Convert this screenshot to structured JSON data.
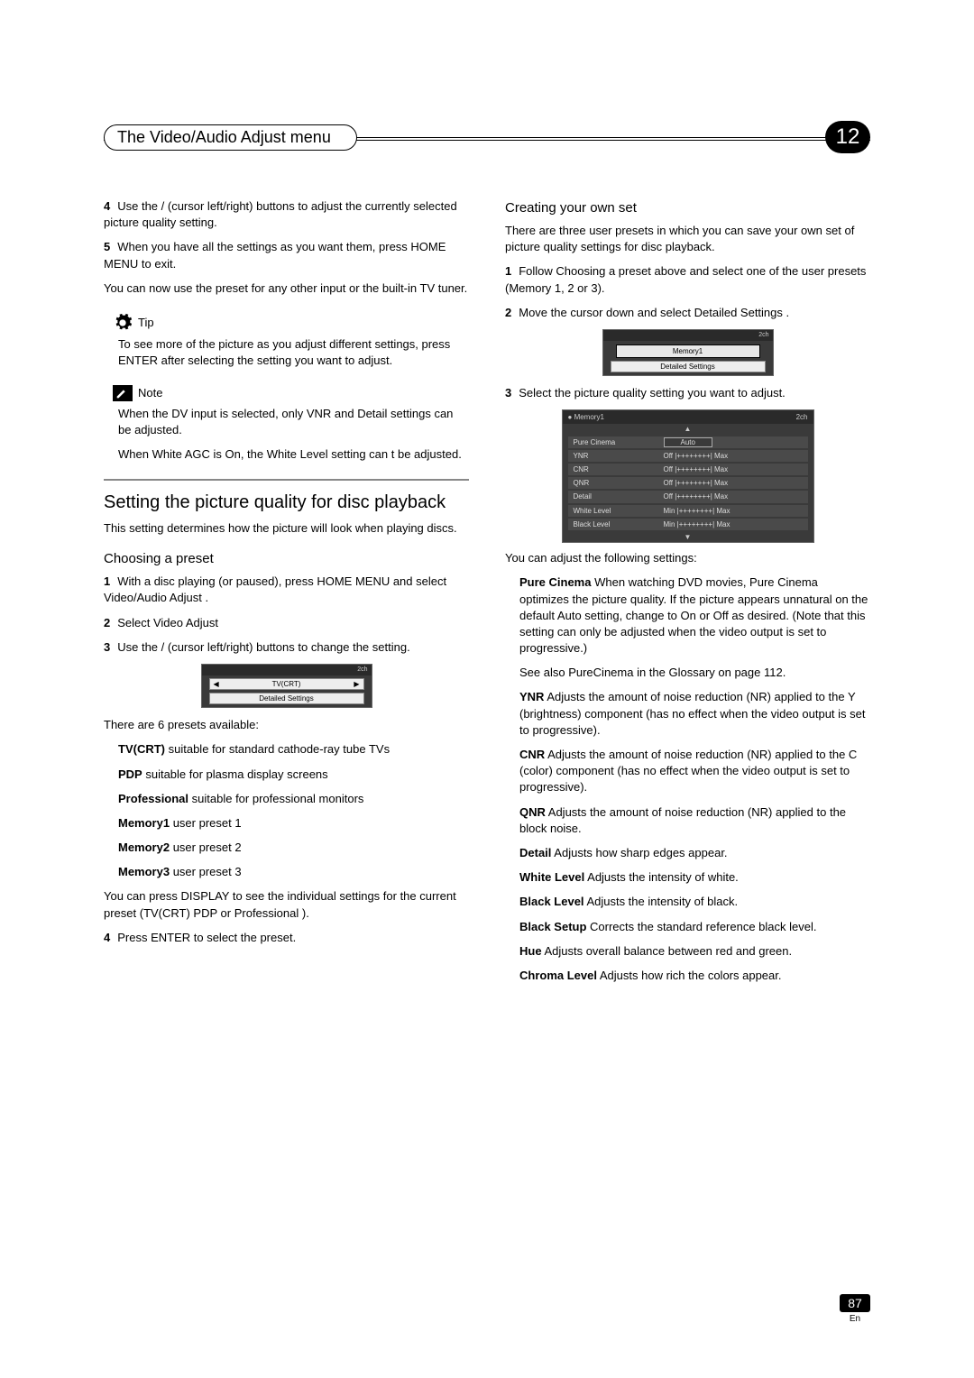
{
  "header": {
    "title": "The Video/Audio Adjust menu",
    "chapter": "12"
  },
  "left": {
    "step4": "Use the  /  (cursor left/right) buttons to adjust the currently selected picture quality setting.",
    "step5a": "When you have all the settings as you want them, press HOME MENU to exit.",
    "step5b": "You can now use the preset for any other input or the built-in TV tuner.",
    "tip_label": "Tip",
    "tip_text": "To see more of the picture as you adjust different settings, press ENTER after selecting the setting you want to adjust.",
    "note_label": "Note",
    "note1": "When the DV input is selected, only VNR and Detail settings can be adjusted.",
    "note2": "When White AGC is On, the White Level  setting can t be adjusted.",
    "h2": "Setting the picture quality for disc playback",
    "h2_desc": "This setting determines how the picture will look when playing discs.",
    "h3_choose": "Choosing a preset",
    "c1": "With a disc playing (or paused), press HOME MENU and select  Video/Audio Adjust .",
    "c2": "Select  Video Adjust",
    "c3": "Use the  /  (cursor left/right) buttons to change the setting.",
    "screen1": {
      "badge": "2ch",
      "row": "TV(CRT)",
      "detail": "Detailed Settings"
    },
    "presets_intro": "There are 6 presets available:",
    "presets": [
      {
        "name": "TV(CRT)",
        "desc": "suitable for standard cathode-ray tube TVs"
      },
      {
        "name": "PDP",
        "desc": "suitable for plasma display screens"
      },
      {
        "name": "Professional",
        "desc": "suitable for professional monitors"
      },
      {
        "name": "Memory1",
        "desc": "user preset 1"
      },
      {
        "name": "Memory2",
        "desc": "user preset 2"
      },
      {
        "name": "Memory3",
        "desc": "user preset 3"
      }
    ],
    "display_note": "You can press DISPLAY to see the individual settings for the current preset (TV(CRT) PDP or Professional ).",
    "c4": "Press ENTER to select the preset."
  },
  "right": {
    "h3_create": "Creating your own set",
    "create_intro": "There are three user presets in which you can save your own set of picture quality settings for disc playback.",
    "r1": "Follow  Choosing a preset above and select one of the user presets (Memory 1, 2 or 3).",
    "r2": "Move the cursor down and select  Detailed Settings .",
    "screen2": {
      "badge": "2ch",
      "tab": "Memory1",
      "detail": "Detailed Settings"
    },
    "r3": "Select the picture quality setting you want to adjust.",
    "screen3": {
      "head_left": "Memory1",
      "badge": "2ch",
      "rows": [
        {
          "lbl": "Pure Cinema",
          "val_type": "box",
          "val": "Auto"
        },
        {
          "lbl": "YNR",
          "val_type": "scale",
          "left": "Off",
          "right": "Max"
        },
        {
          "lbl": "CNR",
          "val_type": "scale",
          "left": "Off",
          "right": "Max"
        },
        {
          "lbl": "QNR",
          "val_type": "scale",
          "left": "Off",
          "right": "Max"
        },
        {
          "lbl": "Detail",
          "val_type": "scale",
          "left": "Off",
          "right": "Max"
        },
        {
          "lbl": "White Level",
          "val_type": "scale",
          "left": "Min",
          "right": "Max"
        },
        {
          "lbl": "Black Level",
          "val_type": "scale",
          "left": "Min",
          "right": "Max"
        }
      ]
    },
    "adjust_intro": "You can adjust the following settings:",
    "settings": [
      {
        "name": "Pure Cinema",
        "desc": "When watching DVD movies, Pure Cinema optimizes the picture quality. If the picture appears unnatural on the default Auto  setting, change to On or Off  as desired. (Note that this setting can only be adjusted when the video output is set to progressive.)"
      }
    ],
    "see_also": "See also PureCinema in the Glossary on page 112.",
    "settings2": [
      {
        "name": "YNR",
        "desc": "Adjusts the amount of noise reduction (NR) applied to the Y (brightness) component (has no effect when the video output is set to progressive)."
      },
      {
        "name": "CNR",
        "desc": "Adjusts the amount of noise reduction (NR) applied to the C (color) component (has no effect when the video output is set to progressive)."
      },
      {
        "name": "QNR",
        "desc": "Adjusts the amount of noise reduction (NR) applied to the block noise."
      },
      {
        "name": "Detail",
        "desc": "Adjusts how sharp edges appear."
      },
      {
        "name": "White Level",
        "desc": "Adjusts the intensity of white."
      },
      {
        "name": "Black Level",
        "desc": "Adjusts the intensity of black."
      },
      {
        "name": "Black Setup",
        "desc": "Corrects the standard reference black level."
      },
      {
        "name": "Hue",
        "desc": "Adjusts overall balance between red and green."
      },
      {
        "name": "Chroma Level",
        "desc": "Adjusts how rich the colors appear."
      }
    ]
  },
  "page": {
    "num": "87",
    "lang": "En"
  }
}
